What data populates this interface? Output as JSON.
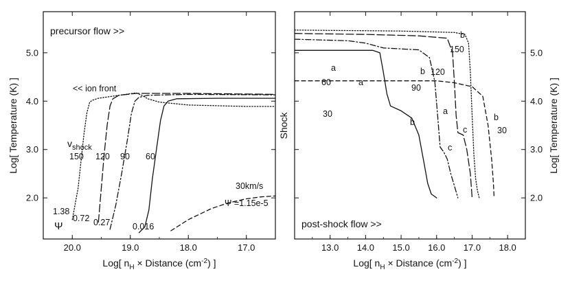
{
  "chart_data": [
    {
      "type": "line",
      "panel": "left",
      "xlabel": "Log[ n_H × Distance (cm⁻²) ]",
      "ylabel": "Log[ Temperature (K) ]",
      "xlim": [
        20.5,
        16.5
      ],
      "ylim": [
        1.15,
        5.85
      ],
      "x_reversed": true,
      "xticks": [
        20.0,
        19.0,
        18.0,
        17.0
      ],
      "yticks": [
        2.0,
        3.0,
        4.0,
        5.0
      ],
      "xtick_labels": [
        "20.0",
        "19.0",
        "18.0",
        "17.0"
      ],
      "ytick_labels": [
        "2.0",
        "3.0",
        "4.0",
        "5.0"
      ],
      "annotations": {
        "top_left": "precursor flow >>",
        "ion_front": "<< ion front",
        "vshock_main": "v",
        "vshock_sub": "shock",
        "psi_symbol": "Ψ",
        "speed_30": "30km/s",
        "psi_30": "Ψ =1.15e-5"
      },
      "series": [
        {
          "style": "dotted",
          "speed_label": "150",
          "psi_label": "1.38",
          "x": [
            20.0,
            19.9,
            19.85,
            19.8,
            19.75,
            19.7,
            19.65,
            19.55,
            19.2,
            18.9,
            18.8,
            18.7,
            18.5,
            18.0,
            17.0,
            16.5
          ],
          "y": [
            1.55,
            2.2,
            2.75,
            3.3,
            3.75,
            3.98,
            4.02,
            4.06,
            4.12,
            4.17,
            4.12,
            4.05,
            3.98,
            3.92,
            3.89,
            3.89
          ]
        },
        {
          "style": "long-dash",
          "speed_label": "120",
          "psi_label": "0.72",
          "x": [
            19.55,
            19.5,
            19.45,
            19.4,
            19.35,
            19.3,
            19.2,
            18.9,
            18.0,
            16.5
          ],
          "y": [
            1.5,
            2.2,
            2.9,
            3.5,
            3.9,
            4.05,
            4.12,
            4.16,
            4.16,
            4.14
          ]
        },
        {
          "style": "dash-dot",
          "speed_label": "90",
          "psi_label": "0.27",
          "x": [
            19.35,
            19.25,
            19.15,
            19.05,
            18.98,
            18.92,
            18.85,
            18.7,
            18.0,
            16.5
          ],
          "y": [
            1.35,
            1.85,
            2.5,
            3.2,
            3.75,
            4.0,
            4.08,
            4.12,
            4.14,
            4.13
          ]
        },
        {
          "style": "solid",
          "speed_label": "60",
          "psi_label": "0.016",
          "x": [
            18.85,
            18.75,
            18.68,
            18.62,
            18.55,
            18.48,
            18.42,
            18.35,
            18.2,
            17.5,
            16.5
          ],
          "y": [
            1.28,
            1.4,
            1.75,
            2.4,
            3.0,
            3.6,
            3.9,
            4.0,
            4.05,
            4.06,
            4.06
          ]
        },
        {
          "style": "dashed",
          "speed_label": "30km/s",
          "psi_label": "Ψ =1.15e-5",
          "x": [
            18.3,
            18.0,
            17.6,
            17.3,
            17.0,
            16.75,
            16.5
          ],
          "y": [
            1.32,
            1.55,
            1.78,
            1.9,
            1.98,
            2.02,
            2.04
          ]
        }
      ]
    },
    {
      "type": "line",
      "panel": "right",
      "xlabel": "Log[ n_H × Distance (cm⁻²) ]",
      "ylabel": "Log[ Temperature (K) ]",
      "ylabel_left": "Shock",
      "xlim": [
        12.0,
        18.5
      ],
      "ylim": [
        1.15,
        5.85
      ],
      "xticks": [
        13.0,
        14.0,
        15.0,
        16.0,
        17.0,
        18.0
      ],
      "yticks": [
        2.0,
        3.0,
        4.0,
        5.0
      ],
      "xtick_labels": [
        "13.0",
        "14.0",
        "15.0",
        "16.0",
        "17.0",
        "18.0"
      ],
      "ytick_labels": [
        "2.0",
        "3.0",
        "4.0",
        "5.0"
      ],
      "annotations": {
        "bottom_left": "post-shock flow >>"
      },
      "series": [
        {
          "style": "dotted",
          "speed_label": "150",
          "x": [
            12.0,
            15.0,
            16.5,
            16.8,
            16.9,
            16.95,
            17.0,
            17.05,
            17.1,
            17.15,
            17.2
          ],
          "y": [
            5.47,
            5.45,
            5.42,
            5.38,
            5.2,
            4.6,
            3.7,
            2.9,
            2.4,
            2.15,
            2.0
          ]
        },
        {
          "style": "long-dash",
          "speed_label": "120",
          "x": [
            12.0,
            14.0,
            15.5,
            16.3,
            16.45,
            16.5,
            16.55,
            16.6,
            16.75,
            16.85,
            16.95,
            17.0
          ],
          "y": [
            5.4,
            5.38,
            5.35,
            5.3,
            5.0,
            4.4,
            3.7,
            3.35,
            3.3,
            3.0,
            2.5,
            2.0
          ]
        },
        {
          "style": "dash-dot",
          "speed_label": "90",
          "x": [
            12.0,
            13.5,
            14.0,
            14.5,
            15.5,
            15.8,
            15.95,
            16.05,
            16.1,
            16.2,
            16.3,
            16.4,
            16.5,
            16.6
          ],
          "y": [
            5.28,
            5.25,
            5.2,
            5.1,
            5.06,
            4.9,
            4.4,
            3.5,
            3.05,
            2.95,
            2.8,
            2.5,
            2.25,
            2.0
          ]
        },
        {
          "style": "solid",
          "speed_label": "60",
          "x": [
            12.0,
            14.2,
            14.4,
            14.5,
            14.6,
            14.7,
            15.0,
            15.3,
            15.5,
            15.65,
            15.75,
            15.85,
            16.0
          ],
          "y": [
            5.05,
            5.05,
            5.0,
            4.6,
            4.15,
            3.9,
            3.8,
            3.65,
            3.3,
            2.7,
            2.3,
            2.08,
            2.0
          ]
        },
        {
          "style": "dashed",
          "speed_label": "30",
          "x": [
            12.0,
            15.0,
            16.0,
            16.5,
            17.0,
            17.3,
            17.45,
            17.55,
            17.6,
            17.62
          ],
          "y": [
            4.42,
            4.42,
            4.42,
            4.38,
            4.3,
            4.1,
            3.5,
            2.8,
            2.3,
            2.0
          ]
        }
      ],
      "letter_labels": [
        "a",
        "b",
        "c"
      ]
    }
  ],
  "styles": {
    "line_color": "#111111",
    "dashes": {
      "solid": "",
      "dotted": "1.4 2.4",
      "long-dash": "11 4",
      "dash-dot": "8 3 1.8 3",
      "dashed": "6 4"
    }
  }
}
